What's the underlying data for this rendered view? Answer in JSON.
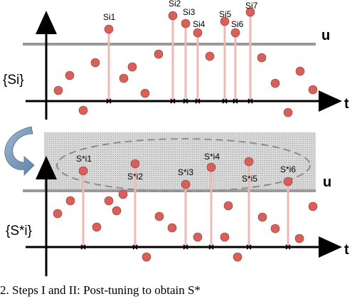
{
  "top_panel": {
    "set_label": "{Si}",
    "threshold_label": "u",
    "axis_label": "t",
    "labels": [
      "Si1",
      "Si2",
      "Si3",
      "Si4",
      "Si5",
      "Si6",
      "Si7"
    ]
  },
  "bottom_panel": {
    "set_label": "{S*i}",
    "threshold_label": "u",
    "axis_label": "t",
    "labels": [
      "S*i1",
      "S*i2",
      "S*i3",
      "S*i4",
      "S*i5",
      "S*i6"
    ]
  },
  "caption": "2. Steps I and II: Post-tuning to obtain S*",
  "colors": {
    "dot": "#d9605a",
    "stem": "#f0b8b5",
    "threshold": "#999999",
    "band": "#cccccc",
    "arrow": "#6f8fb3"
  }
}
